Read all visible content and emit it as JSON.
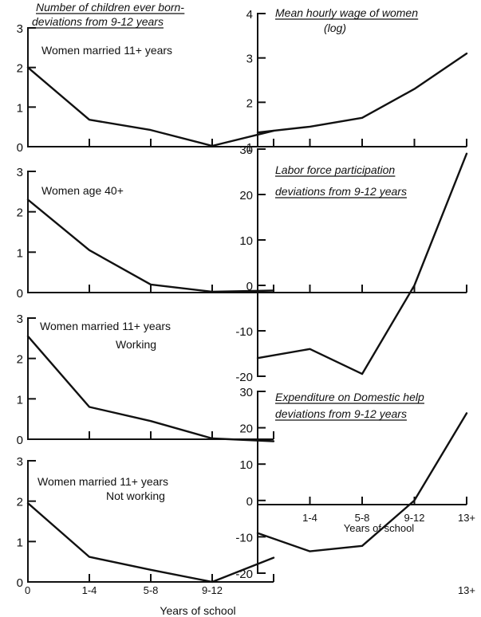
{
  "chart_data": [
    {
      "id": "p1",
      "type": "line",
      "title": "Number of children ever born-",
      "subtitle": "deviations from 9-12 years",
      "annotation": "Women married 11+ years",
      "x": [
        "0",
        "1-4",
        "5-8",
        "9-12",
        "13+"
      ],
      "values": [
        2.0,
        0.68,
        0.42,
        0.02,
        0.4
      ],
      "ylim": [
        0,
        3
      ],
      "yticks": [
        "0",
        "1",
        "2",
        "3"
      ],
      "xticks_shown": []
    },
    {
      "id": "p2",
      "type": "line",
      "title": "",
      "subtitle": "",
      "annotation": "Women age 40+",
      "x": [
        "0",
        "1-4",
        "5-8",
        "9-12",
        "13+"
      ],
      "values": [
        2.3,
        1.05,
        0.2,
        0.02,
        0.05
      ],
      "ylim": [
        0,
        3
      ],
      "yticks": [
        "0",
        "1",
        "2",
        "3"
      ],
      "xticks_shown": []
    },
    {
      "id": "p3",
      "type": "line",
      "title": "",
      "subtitle": "",
      "annotation": "Women married 11+ years",
      "annotation2": "Working",
      "x": [
        "0",
        "1-4",
        "5-8",
        "9-12",
        "13+"
      ],
      "values": [
        2.55,
        0.8,
        0.45,
        0.02,
        -0.05
      ],
      "ylim": [
        0,
        3
      ],
      "yticks": [
        "0",
        "1",
        "2",
        "3"
      ],
      "xticks_shown": []
    },
    {
      "id": "p4",
      "type": "line",
      "title": "",
      "subtitle": "",
      "annotation": "Women married 11+ years",
      "annotation2": "Not working",
      "x": [
        "0",
        "1-4",
        "5-8",
        "9-12",
        "13+"
      ],
      "values": [
        1.95,
        0.62,
        0.3,
        0.0,
        0.6
      ],
      "ylim": [
        0,
        3
      ],
      "yticks": [
        "0",
        "1",
        "2",
        "3"
      ],
      "xticks_shown": [
        "0",
        "1-4",
        "5-8",
        "9-12",
        "13+"
      ],
      "xlabel": "Years of school"
    },
    {
      "id": "p5",
      "type": "line",
      "title": "Mean hourly wage of women",
      "subtitle": "(log)",
      "annotation": "",
      "x": [
        "0",
        "1-4",
        "5-8",
        "9-12",
        "13+"
      ],
      "values": [
        1.32,
        1.45,
        1.65,
        2.3,
        3.1
      ],
      "ylim": [
        1,
        4
      ],
      "yticks": [
        "1",
        "2",
        "3",
        "4"
      ],
      "xticks_shown": []
    },
    {
      "id": "p6",
      "type": "line",
      "title": "Labor force participation",
      "subtitle": "deviations from 9-12 years",
      "annotation": "",
      "x": [
        "0",
        "1-4",
        "5-8",
        "9-12",
        "13+"
      ],
      "values": [
        -16,
        -14,
        -19.5,
        0,
        29
      ],
      "ylim": [
        -20,
        30
      ],
      "yticks": [
        "-20",
        "-10",
        "0",
        "10",
        "20",
        "30"
      ],
      "xticks_shown": []
    },
    {
      "id": "p7",
      "type": "line",
      "title": "Expenditure on Domestic help",
      "subtitle": "deviations from 9-12 years",
      "annotation": "",
      "x": [
        "0",
        "1-4",
        "5-8",
        "9-12",
        "13+"
      ],
      "values": [
        -9,
        -14,
        -12.5,
        0,
        24
      ],
      "ylim": [
        -20,
        30
      ],
      "yticks": [
        "-20",
        "-10",
        "0",
        "10",
        "20",
        "30"
      ],
      "xticks_shown": [
        "1-4",
        "5-8",
        "9-12",
        "13+"
      ],
      "xlabel": "Years of school"
    }
  ]
}
